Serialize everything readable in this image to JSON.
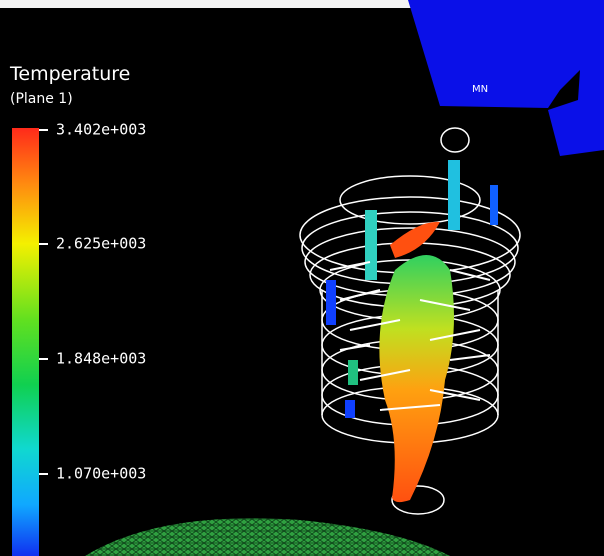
{
  "legend": {
    "title": "Temperature",
    "subtitle": "(Plane  1)",
    "ticks": [
      "3.402e+003",
      "2.625e+003",
      "1.848e+003",
      "1.070e+003"
    ]
  },
  "triad_label": "MN"
}
